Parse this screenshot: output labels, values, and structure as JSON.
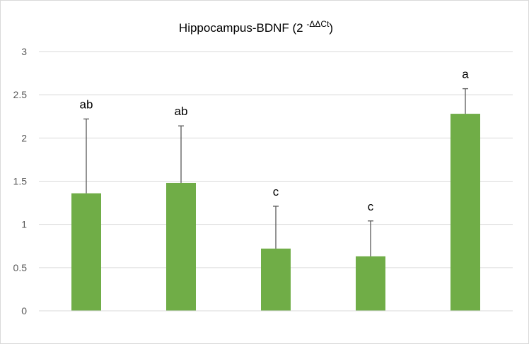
{
  "chart_data": {
    "type": "bar",
    "title": {
      "main": "Hippocampus-BDNF (2 ",
      "superscript": "-ΔΔCt",
      "close": ")"
    },
    "categories": [
      "",
      "",
      "",
      "",
      ""
    ],
    "values": [
      1.36,
      1.48,
      0.72,
      0.63,
      2.28
    ],
    "error_plus": [
      0.86,
      0.66,
      0.49,
      0.41,
      0.29
    ],
    "significance_labels": [
      "ab",
      "ab",
      "c",
      "c",
      "a"
    ],
    "yticks": [
      "0",
      "0.5",
      "1",
      "1.5",
      "2",
      "2.5",
      "3"
    ],
    "ylim": [
      0,
      3
    ],
    "grid": true,
    "legend": "none",
    "colors": {
      "bar": "#70ad47",
      "error_bar": "#595959",
      "grid": "#d9d9d9",
      "axis": "#d9d9d9"
    }
  }
}
